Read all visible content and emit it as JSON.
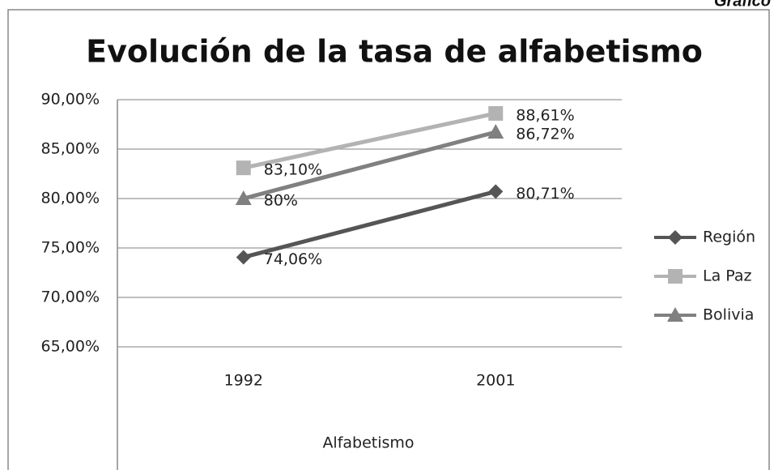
{
  "page_label": "Gráfico",
  "chart_data": {
    "type": "line",
    "title": "Evolución de la tasa de alfabetismo",
    "x_label": "Alfabetismo",
    "categories": [
      "1992",
      "2001"
    ],
    "series": [
      {
        "name": "Región",
        "color": "#555555",
        "marker": "diamond",
        "values": [
          74.06,
          80.71
        ],
        "value_labels": [
          "74,06%",
          "80,71%"
        ]
      },
      {
        "name": "La Paz",
        "color": "#b3b3b3",
        "marker": "square",
        "values": [
          83.1,
          88.61
        ],
        "value_labels": [
          "83,10%",
          "88,61%"
        ]
      },
      {
        "name": "Bolivia",
        "color": "#808080",
        "marker": "triangle",
        "values": [
          80,
          86.72
        ],
        "value_labels": [
          "80%",
          "86,72%"
        ]
      }
    ],
    "ylim": [
      65,
      90
    ],
    "yticks": [
      {
        "value": 65,
        "label": "65,00%"
      },
      {
        "value": 70,
        "label": "70,00%"
      },
      {
        "value": 75,
        "label": "75,00%"
      },
      {
        "value": 80,
        "label": "80,00%"
      },
      {
        "value": 85,
        "label": "85,00%"
      },
      {
        "value": 90,
        "label": "90,00%"
      }
    ],
    "grid": true,
    "legend": "right"
  }
}
